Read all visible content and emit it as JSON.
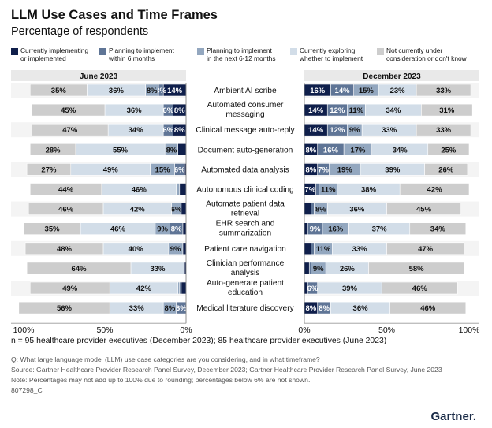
{
  "title": "LLM Use Cases and Time Frames",
  "subtitle": "Percentage of respondents",
  "legend": [
    {
      "label_line1": "Currently implementing",
      "label_line2": "or implemented",
      "color": "#0f1f4b"
    },
    {
      "label_line1": "Planning to implement",
      "label_line2": "within 6 months",
      "color": "#5f7596"
    },
    {
      "label_line1": "Planning to implement",
      "label_line2": "in the next 6-12 months",
      "color": "#93a7bf"
    },
    {
      "label_line1": "Currently exploring",
      "label_line2": "whether to implement",
      "color": "#d2dde8"
    },
    {
      "label_line1": "Not currently under",
      "label_line2": "consideration or don't know",
      "color": "#cdcdcd"
    }
  ],
  "chart_data": {
    "type": "bar",
    "orientation": "horizontal-stacked-diverging",
    "panels": [
      "June 2023",
      "December 2023"
    ],
    "series_order": [
      "Currently implementing or implemented",
      "Planning to implement within 6 months",
      "Planning to implement in the next 6-12 months",
      "Currently exploring whether to implement",
      "Not currently under consideration or don't know"
    ],
    "categories": [
      {
        "line1": "Ambient AI scribe",
        "line2": ""
      },
      {
        "line1": "Automated consumer",
        "line2": "messaging"
      },
      {
        "line1": "Clinical message auto-reply",
        "line2": ""
      },
      {
        "line1": "Document auto-generation",
        "line2": ""
      },
      {
        "line1": "Automated data analysis",
        "line2": ""
      },
      {
        "line1": "Autonomous clinical coding",
        "line2": ""
      },
      {
        "line1": "Automate patient data",
        "line2": "retrieval"
      },
      {
        "line1": "EHR search and",
        "line2": "summarization"
      },
      {
        "line1": "Patient care navigation",
        "line2": ""
      },
      {
        "line1": "Clinician performance",
        "line2": "analysis"
      },
      {
        "line1": "Auto-generate patient",
        "line2": "education"
      },
      {
        "line1": "Medical literature discovery",
        "line2": ""
      }
    ],
    "june_2023": [
      [
        14,
        3,
        8,
        36,
        35
      ],
      [
        8,
        6,
        0,
        36,
        45
      ],
      [
        8,
        6,
        0,
        34,
        47
      ],
      [
        5,
        0,
        8,
        55,
        28
      ],
      [
        1,
        6,
        15,
        49,
        27
      ],
      [
        4,
        0,
        2,
        46,
        44
      ],
      [
        3,
        0,
        6,
        42,
        46
      ],
      [
        2,
        8,
        9,
        46,
        35
      ],
      [
        2,
        0,
        9,
        40,
        48
      ],
      [
        1,
        0,
        0,
        33,
        64
      ],
      [
        3,
        1,
        1,
        42,
        49
      ],
      [
        0,
        6,
        8,
        33,
        56
      ]
    ],
    "december_2023": [
      [
        16,
        14,
        15,
        23,
        33
      ],
      [
        14,
        12,
        11,
        34,
        31
      ],
      [
        14,
        12,
        9,
        33,
        33
      ],
      [
        8,
        16,
        17,
        34,
        25
      ],
      [
        8,
        7,
        19,
        39,
        26
      ],
      [
        7,
        2,
        11,
        38,
        42
      ],
      [
        4,
        2,
        8,
        36,
        45
      ],
      [
        2,
        9,
        16,
        37,
        34
      ],
      [
        4,
        2,
        11,
        33,
        47
      ],
      [
        3,
        1,
        9,
        26,
        58
      ],
      [
        2,
        6,
        0,
        39,
        46
      ],
      [
        8,
        8,
        0,
        36,
        46
      ]
    ],
    "june_2023_labels": [
      [
        "14%",
        "3%",
        "8%",
        "36%",
        "35%"
      ],
      [
        "8%",
        "6%",
        "",
        "36%",
        "45%"
      ],
      [
        "8%",
        "6%",
        "",
        "34%",
        "47%"
      ],
      [
        "",
        "",
        "8%",
        "55%",
        "28%"
      ],
      [
        "",
        "6%",
        "15%",
        "49%",
        "27%"
      ],
      [
        "",
        "",
        "",
        "46%",
        "44%"
      ],
      [
        "",
        "",
        "6%",
        "42%",
        "46%"
      ],
      [
        "",
        "8%",
        "9%",
        "46%",
        "35%"
      ],
      [
        "",
        "",
        "9%",
        "40%",
        "48%"
      ],
      [
        "",
        "",
        "",
        "33%",
        "64%"
      ],
      [
        "",
        "",
        "",
        "42%",
        "49%"
      ],
      [
        "",
        "6%",
        "8%",
        "33%",
        "56%"
      ]
    ],
    "december_2023_labels": [
      [
        "16%",
        "14%",
        "15%",
        "23%",
        "33%"
      ],
      [
        "14%",
        "12%",
        "11%",
        "34%",
        "31%"
      ],
      [
        "14%",
        "12%",
        "9%",
        "33%",
        "33%"
      ],
      [
        "8%",
        "16%",
        "17%",
        "34%",
        "25%"
      ],
      [
        "8%",
        "7%",
        "19%",
        "39%",
        "26%"
      ],
      [
        "7%",
        "",
        "11%",
        "38%",
        "42%"
      ],
      [
        "",
        "",
        "8%",
        "36%",
        "45%"
      ],
      [
        "",
        "9%",
        "16%",
        "37%",
        "34%"
      ],
      [
        "",
        "",
        "11%",
        "33%",
        "47%"
      ],
      [
        "",
        "",
        "9%",
        "26%",
        "58%"
      ],
      [
        "",
        "6%",
        "",
        "39%",
        "46%"
      ],
      [
        "8%",
        "8%",
        "",
        "36%",
        "46%"
      ]
    ],
    "axis_ticks_left": [
      "100%",
      "50%",
      "0%"
    ],
    "axis_ticks_right": [
      "0%",
      "50%",
      "100%"
    ],
    "xlim": [
      0,
      100
    ]
  },
  "sample_note": "n = 95 healthcare provider executives (December 2023); 85 healthcare provider executives (June 2023)",
  "footnotes": [
    "Q: What large language model (LLM) use case categories are you considering, and in what timeframe?",
    "Source: Gartner Healthcare Provider Research Panel Survey, December 2023; Gartner Healthcare Provider Research Panel Survey, June 2023",
    "Note: Percentages may not add up to 100% due to rounding; percentages below 6% are not shown.",
    "807298_C"
  ],
  "brand": "Gartner"
}
